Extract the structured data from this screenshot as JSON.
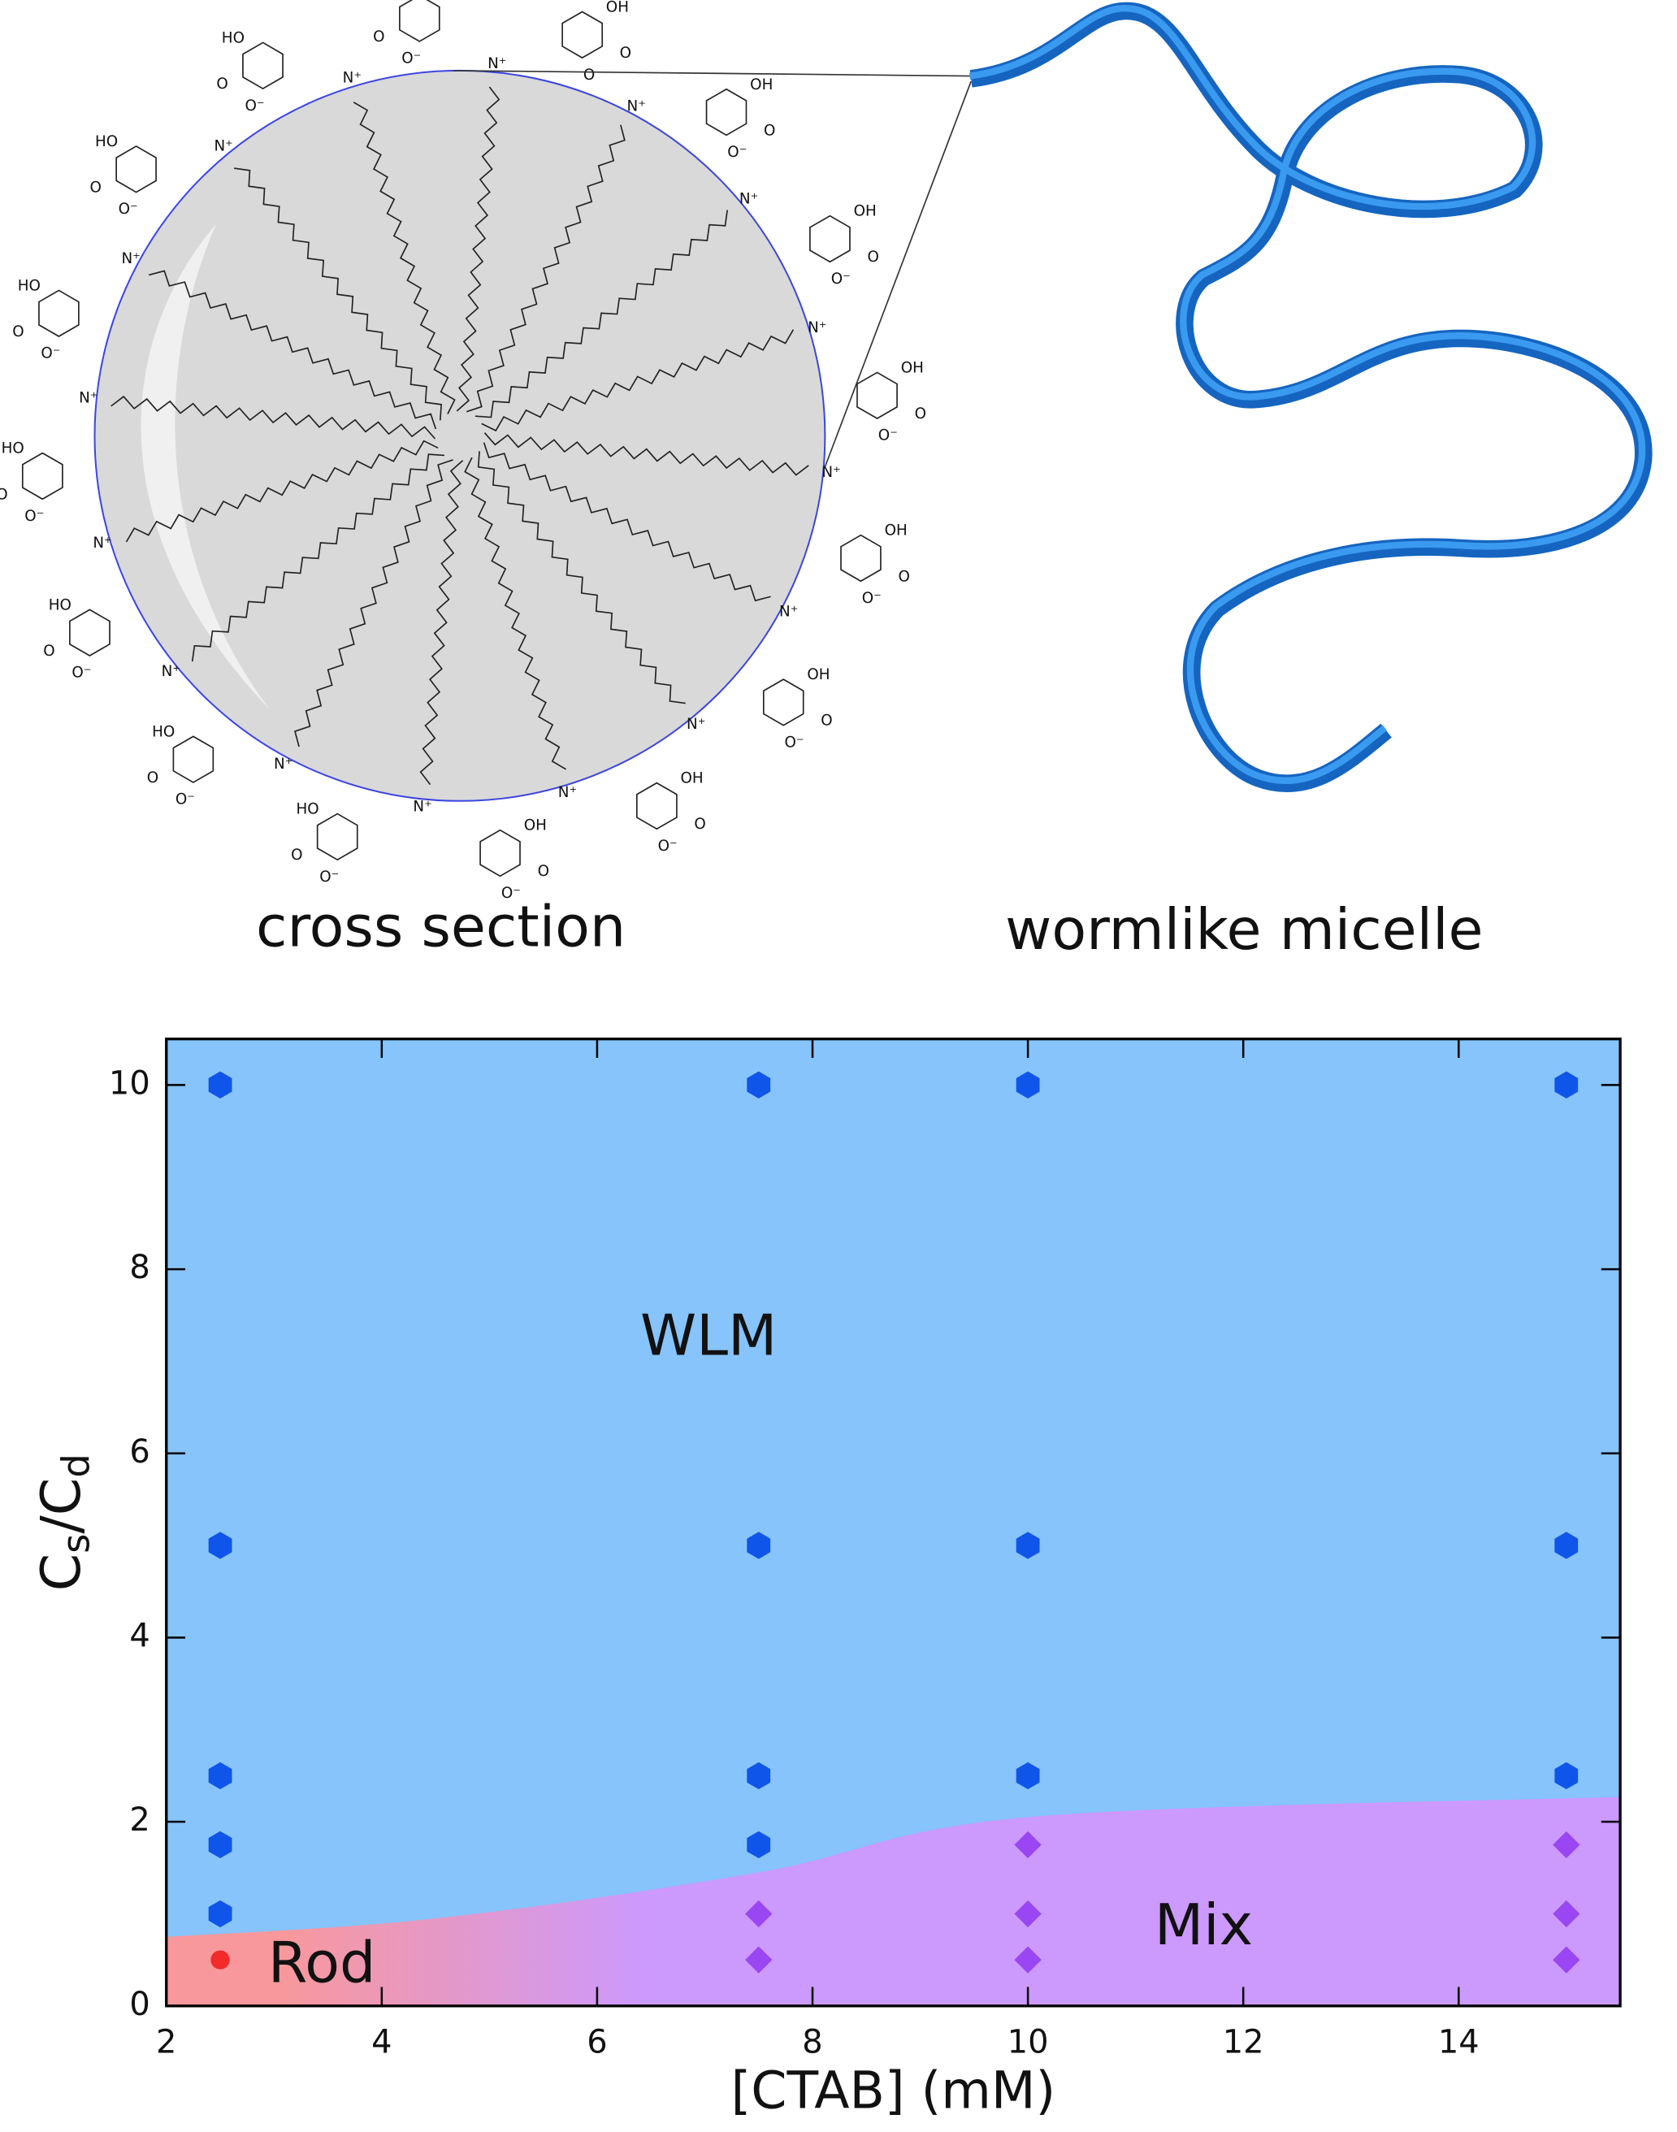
{
  "diagram": {
    "left_caption": "cross section",
    "right_caption": "wormlike micelle",
    "ammonium": "N⁺",
    "hydroxyl": "OH",
    "hydroxyl_left": "HO",
    "oxygen": "O",
    "carboxylate_oxygen": "O⁻"
  },
  "chart_data": {
    "type": "scatter",
    "xlabel": "[CTAB] (mM)",
    "ylabel_parts": [
      "C",
      "s",
      "/C",
      "d"
    ],
    "xlim": [
      2,
      15.5
    ],
    "ylim": [
      0,
      10.5
    ],
    "xticks": [
      2,
      4,
      6,
      8,
      10,
      12,
      14
    ],
    "yticks": [
      0,
      2,
      4,
      6,
      8,
      10
    ],
    "boundary": {
      "x": [
        2,
        4.5,
        7.5,
        10,
        15.5
      ],
      "y": [
        0.75,
        0.95,
        1.45,
        2.05,
        2.27
      ]
    },
    "regions": [
      {
        "name": "WLM",
        "color": "#86c4fb"
      },
      {
        "name": "Mix",
        "color": "#cc99fd"
      },
      {
        "name": "Rod",
        "color": "#f8989c"
      }
    ],
    "series": [
      {
        "name": "WLM",
        "color": "#0f55ea",
        "x": [
          2.5,
          2.5,
          2.5,
          2.5,
          2.5,
          7.5,
          7.5,
          7.5,
          7.5,
          10,
          10,
          10,
          15,
          15,
          15
        ],
        "values": [
          10,
          5,
          2.5,
          1.75,
          1,
          10,
          5,
          2.5,
          1.75,
          10,
          5,
          2.5,
          10,
          5,
          2.5
        ]
      },
      {
        "name": "Mix",
        "color": "#9a46f2",
        "x": [
          7.5,
          7.5,
          10,
          10,
          10,
          15,
          15,
          15
        ],
        "values": [
          1,
          0.5,
          1.75,
          1,
          0.5,
          1.75,
          1,
          0.5
        ]
      },
      {
        "name": "Rod",
        "color": "#f22a2a",
        "x": [
          2.5
        ],
        "values": [
          0.5
        ]
      }
    ]
  }
}
